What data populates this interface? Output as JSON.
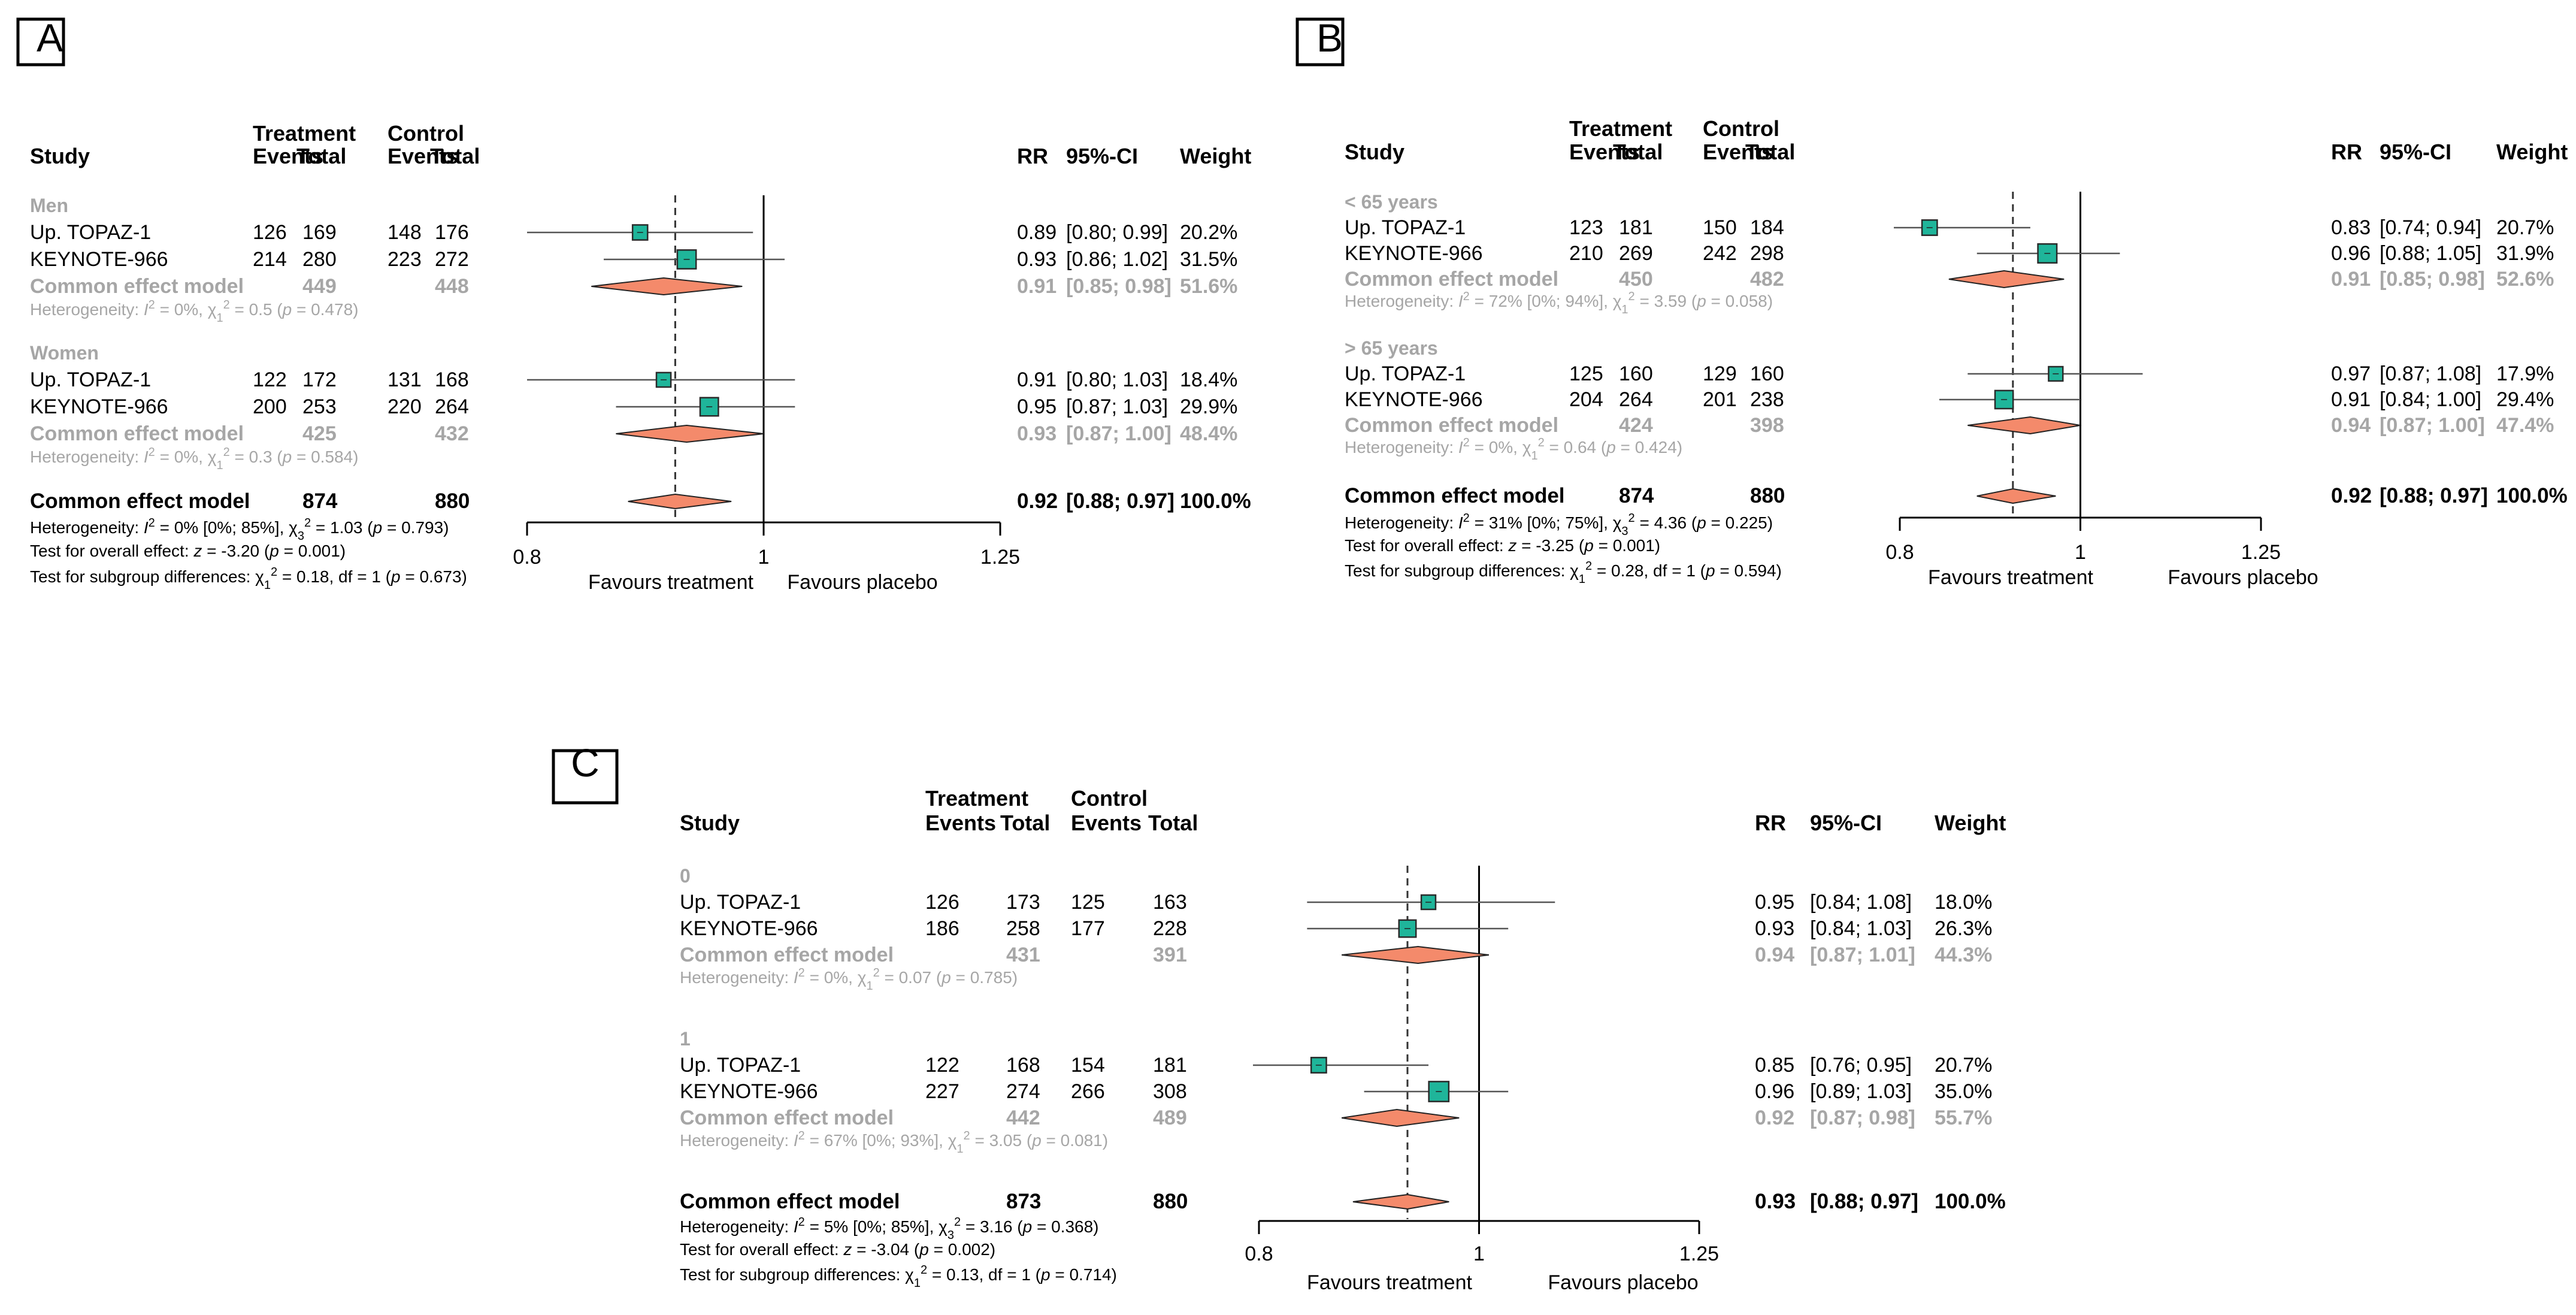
{
  "chart_data": [
    {
      "type": "forest",
      "panel_label": "A",
      "headers": {
        "study": "Study",
        "treatment": "Treatment",
        "control": "Control",
        "events": "Events",
        "total": "Total",
        "rr": "RR",
        "ci": "95%-CI",
        "weight": "Weight"
      },
      "axis": {
        "type": "log",
        "range": [
          0.8,
          1.25
        ],
        "ticks": [
          "0.8",
          "1",
          "1.25"
        ],
        "tick_values": [
          0.8,
          1,
          1.25
        ],
        "reference_line": 1,
        "pooled_line": 0.92,
        "label_left": "Favours treatment",
        "label_right": "Favours placebo"
      },
      "groups": [
        {
          "name": "Men",
          "studies": [
            {
              "study": "Up. TOPAZ-1",
              "ev_t": "126",
              "n_t": "169",
              "ev_c": "148",
              "n_c": "176",
              "rr": 0.89,
              "lo": 0.8,
              "hi": 0.99,
              "rr_text": "0.89",
              "ci_text": "[0.80; 0.99]",
              "weight_text": "20.2%"
            },
            {
              "study": "KEYNOTE-966",
              "ev_t": "214",
              "n_t": "280",
              "ev_c": "223",
              "n_c": "272",
              "rr": 0.93,
              "lo": 0.86,
              "hi": 1.02,
              "rr_text": "0.93",
              "ci_text": "[0.86; 1.02]",
              "weight_text": "31.5%"
            }
          ],
          "subtotal": {
            "label": "Common effect model",
            "n_t": "449",
            "n_c": "448",
            "rr": 0.91,
            "lo": 0.85,
            "hi": 0.98,
            "rr_text": "0.91",
            "ci_text": "[0.85; 0.98]",
            "weight_text": "51.6%"
          },
          "heterogeneity": {
            "pre": "Heterogeneity: ",
            "i2": "I",
            "i2_val": " = 0%, ",
            "chi": "χ",
            "chi_df": "1",
            "chi_val": " = 0.5 (",
            "p": "p",
            "p_val": " = 0.478)"
          }
        },
        {
          "name": "Women",
          "studies": [
            {
              "study": "Up. TOPAZ-1",
              "ev_t": "122",
              "n_t": "172",
              "ev_c": "131",
              "n_c": "168",
              "rr": 0.91,
              "lo": 0.8,
              "hi": 1.03,
              "rr_text": "0.91",
              "ci_text": "[0.80; 1.03]",
              "weight_text": "18.4%"
            },
            {
              "study": "KEYNOTE-966",
              "ev_t": "200",
              "n_t": "253",
              "ev_c": "220",
              "n_c": "264",
              "rr": 0.95,
              "lo": 0.87,
              "hi": 1.03,
              "rr_text": "0.95",
              "ci_text": "[0.87; 1.03]",
              "weight_text": "29.9%"
            }
          ],
          "subtotal": {
            "label": "Common effect model",
            "n_t": "425",
            "n_c": "432",
            "rr": 0.93,
            "lo": 0.87,
            "hi": 1.0,
            "rr_text": "0.93",
            "ci_text": "[0.87; 1.00]",
            "weight_text": "48.4%"
          },
          "heterogeneity": {
            "pre": "Heterogeneity: ",
            "i2": "I",
            "i2_val": " = 0%, ",
            "chi": "χ",
            "chi_df": "1",
            "chi_val": " = 0.3 (",
            "p": "p",
            "p_val": " = 0.584)"
          }
        }
      ],
      "overall": {
        "label": "Common effect model",
        "n_t": "874",
        "n_c": "880",
        "rr": 0.92,
        "lo": 0.88,
        "hi": 0.97,
        "rr_text": "0.92",
        "ci_text": "[0.88; 0.97]",
        "weight_text": "100.0%"
      },
      "footer": {
        "het": {
          "pre": "Heterogeneity: ",
          "i2": "I",
          "i2_val": " = 0% [0%; 85%], ",
          "chi": "χ",
          "chi_df": "3",
          "chi_val": " = 1.03 (",
          "p": "p",
          "p_val": " = 0.793)"
        },
        "test_overall": {
          "pre": "Test for overall effect: ",
          "z": "z",
          "z_val": " = -3.20 (",
          "p": "p",
          "p_val": " = 0.001)"
        },
        "test_sub": {
          "pre": "Test for subgroup differences: ",
          "chi": "χ",
          "chi_df": "1",
          "chi_val": " = 0.18, df = 1 (",
          "p": "p",
          "p_val": " = 0.673)"
        }
      }
    },
    {
      "type": "forest",
      "panel_label": "B",
      "headers": {
        "study": "Study",
        "treatment": "Treatment",
        "control": "Control",
        "events": "Events",
        "total": "Total",
        "rr": "RR",
        "ci": "95%-CI",
        "weight": "Weight"
      },
      "axis": {
        "type": "log",
        "range": [
          0.8,
          1.25
        ],
        "ticks": [
          "0.8",
          "1",
          "1.25"
        ],
        "tick_values": [
          0.8,
          1,
          1.25
        ],
        "reference_line": 1,
        "pooled_line": 0.92,
        "label_left": "Favours treatment",
        "label_right": "Favours placebo"
      },
      "groups": [
        {
          "name": "< 65 years",
          "studies": [
            {
              "study": "Up. TOPAZ-1",
              "ev_t": "123",
              "n_t": "181",
              "ev_c": "150",
              "n_c": "184",
              "rr": 0.83,
              "lo": 0.74,
              "hi": 0.94,
              "rr_text": "0.83",
              "ci_text": "[0.74; 0.94]",
              "weight_text": "20.7%"
            },
            {
              "study": "KEYNOTE-966",
              "ev_t": "210",
              "n_t": "269",
              "ev_c": "242",
              "n_c": "298",
              "rr": 0.96,
              "lo": 0.88,
              "hi": 1.05,
              "rr_text": "0.96",
              "ci_text": "[0.88; 1.05]",
              "weight_text": "31.9%"
            }
          ],
          "subtotal": {
            "label": "Common effect model",
            "n_t": "450",
            "n_c": "482",
            "rr": 0.91,
            "lo": 0.85,
            "hi": 0.98,
            "rr_text": "0.91",
            "ci_text": "[0.85; 0.98]",
            "weight_text": "52.6%"
          },
          "heterogeneity": {
            "pre": "Heterogeneity: ",
            "i2": "I",
            "i2_val": " = 72% [0%; 94%], ",
            "chi": "χ",
            "chi_df": "1",
            "chi_val": " = 3.59 (",
            "p": "p",
            "p_val": " = 0.058)"
          }
        },
        {
          "name": "> 65 years",
          "studies": [
            {
              "study": "Up. TOPAZ-1",
              "ev_t": "125",
              "n_t": "160",
              "ev_c": "129",
              "n_c": "160",
              "rr": 0.97,
              "lo": 0.87,
              "hi": 1.08,
              "rr_text": "0.97",
              "ci_text": "[0.87; 1.08]",
              "weight_text": "17.9%"
            },
            {
              "study": "KEYNOTE-966",
              "ev_t": "204",
              "n_t": "264",
              "ev_c": "201",
              "n_c": "238",
              "rr": 0.91,
              "lo": 0.84,
              "hi": 1.0,
              "rr_text": "0.91",
              "ci_text": "[0.84; 1.00]",
              "weight_text": "29.4%"
            }
          ],
          "subtotal": {
            "label": "Common effect model",
            "n_t": "424",
            "n_c": "398",
            "rr": 0.94,
            "lo": 0.87,
            "hi": 1.0,
            "rr_text": "0.94",
            "ci_text": "[0.87; 1.00]",
            "weight_text": "47.4%"
          },
          "heterogeneity": {
            "pre": "Heterogeneity: ",
            "i2": "I",
            "i2_val": " = 0%, ",
            "chi": "χ",
            "chi_df": "1",
            "chi_val": " = 0.64 (",
            "p": "p",
            "p_val": " = 0.424)"
          }
        }
      ],
      "overall": {
        "label": "Common effect model",
        "n_t": "874",
        "n_c": "880",
        "rr": 0.92,
        "lo": 0.88,
        "hi": 0.97,
        "rr_text": "0.92",
        "ci_text": "[0.88; 0.97]",
        "weight_text": "100.0%"
      },
      "footer": {
        "het": {
          "pre": "Heterogeneity: ",
          "i2": "I",
          "i2_val": " = 31% [0%; 75%], ",
          "chi": "χ",
          "chi_df": "3",
          "chi_val": " = 4.36 (",
          "p": "p",
          "p_val": " = 0.225)"
        },
        "test_overall": {
          "pre": "Test for overall effect: ",
          "z": "z",
          "z_val": " = -3.25 (",
          "p": "p",
          "p_val": " = 0.001)"
        },
        "test_sub": {
          "pre": "Test for subgroup differences: ",
          "chi": "χ",
          "chi_df": "1",
          "chi_val": " = 0.28, df = 1 (",
          "p": "p",
          "p_val": " = 0.594)"
        }
      }
    },
    {
      "type": "forest",
      "panel_label": "C",
      "headers": {
        "study": "Study",
        "treatment": "Treatment",
        "control": "Control",
        "events": "Events",
        "total": "Total",
        "rr": "RR",
        "ci": "95%-CI",
        "weight": "Weight"
      },
      "axis": {
        "type": "log",
        "range": [
          0.8,
          1.25
        ],
        "ticks": [
          "0.8",
          "1",
          "1.25"
        ],
        "tick_values": [
          0.8,
          1,
          1.25
        ],
        "reference_line": 1,
        "pooled_line": 0.93,
        "label_left": "Favours treatment",
        "label_right": "Favours placebo"
      },
      "groups": [
        {
          "name": "0",
          "studies": [
            {
              "study": "Up. TOPAZ-1",
              "ev_t": "126",
              "n_t": "173",
              "ev_c": "125",
              "n_c": "163",
              "rr": 0.95,
              "lo": 0.84,
              "hi": 1.08,
              "rr_text": "0.95",
              "ci_text": "[0.84; 1.08]",
              "weight_text": "18.0%"
            },
            {
              "study": "KEYNOTE-966",
              "ev_t": "186",
              "n_t": "258",
              "ev_c": "177",
              "n_c": "228",
              "rr": 0.93,
              "lo": 0.84,
              "hi": 1.03,
              "rr_text": "0.93",
              "ci_text": "[0.84; 1.03]",
              "weight_text": "26.3%"
            }
          ],
          "subtotal": {
            "label": "Common effect model",
            "n_t": "431",
            "n_c": "391",
            "rr": 0.94,
            "lo": 0.87,
            "hi": 1.01,
            "rr_text": "0.94",
            "ci_text": "[0.87; 1.01]",
            "weight_text": "44.3%"
          },
          "heterogeneity": {
            "pre": "Heterogeneity: ",
            "i2": "I",
            "i2_val": " = 0%, ",
            "chi": "χ",
            "chi_df": "1",
            "chi_val": " = 0.07 (",
            "p": "p",
            "p_val": " = 0.785)"
          }
        },
        {
          "name": "1",
          "studies": [
            {
              "study": "Up. TOPAZ-1",
              "ev_t": "122",
              "n_t": "168",
              "ev_c": "154",
              "n_c": "181",
              "rr": 0.85,
              "lo": 0.76,
              "hi": 0.95,
              "rr_text": "0.85",
              "ci_text": "[0.76; 0.95]",
              "weight_text": "20.7%"
            },
            {
              "study": "KEYNOTE-966",
              "ev_t": "227",
              "n_t": "274",
              "ev_c": "266",
              "n_c": "308",
              "rr": 0.96,
              "lo": 0.89,
              "hi": 1.03,
              "rr_text": "0.96",
              "ci_text": "[0.89; 1.03]",
              "weight_text": "35.0%"
            }
          ],
          "subtotal": {
            "label": "Common effect model",
            "n_t": "442",
            "n_c": "489",
            "rr": 0.92,
            "lo": 0.87,
            "hi": 0.98,
            "rr_text": "0.92",
            "ci_text": "[0.87; 0.98]",
            "weight_text": "55.7%"
          },
          "heterogeneity": {
            "pre": "Heterogeneity: ",
            "i2": "I",
            "i2_val": " = 67% [0%; 93%], ",
            "chi": "χ",
            "chi_df": "1",
            "chi_val": " = 3.05 (",
            "p": "p",
            "p_val": " = 0.081)"
          }
        }
      ],
      "overall": {
        "label": "Common effect model",
        "n_t": "873",
        "n_c": "880",
        "rr": 0.93,
        "lo": 0.88,
        "hi": 0.97,
        "rr_text": "0.93",
        "ci_text": "[0.88; 0.97]",
        "weight_text": "100.0%"
      },
      "footer": {
        "het": {
          "pre": "Heterogeneity: ",
          "i2": "I",
          "i2_val": " = 5% [0%; 85%], ",
          "chi": "χ",
          "chi_df": "3",
          "chi_val": " = 3.16 (",
          "p": "p",
          "p_val": " = 0.368)"
        },
        "test_overall": {
          "pre": "Test for overall effect: ",
          "z": "z",
          "z_val": " = -3.04 (",
          "p": "p",
          "p_val": " = 0.002)"
        },
        "test_sub": {
          "pre": "Test for subgroup differences: ",
          "chi": "χ",
          "chi_df": "1",
          "chi_val": " = 0.13, df = 1 (",
          "p": "p",
          "p_val": " = 0.714)"
        }
      }
    }
  ],
  "colors": {
    "square": "#1fb59a",
    "diamond": "#f48a6b",
    "ci_line": "#555555",
    "axis": "#000000",
    "ref_line": "#000000",
    "pooled_line": "#333333",
    "subgroup_text": "#a6a6a6",
    "square_edge": "#2a2a2a"
  }
}
